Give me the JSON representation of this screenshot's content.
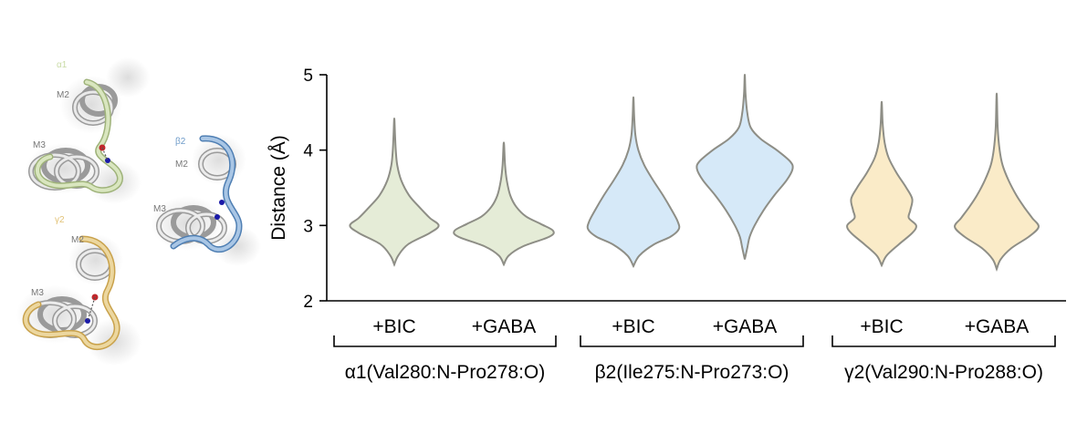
{
  "structure_panel": {
    "labels": {
      "alpha": "α1",
      "beta": "β2",
      "gamma": "γ2",
      "m2": "M2",
      "m3": "M3"
    },
    "colors": {
      "alpha": "#c9dba6",
      "beta": "#6e9bc9",
      "gamma": "#e2c277",
      "helix": "#bdbdbd",
      "bond_n": "#1a1aa8",
      "bond_o": "#c0282c"
    }
  },
  "chart_data": {
    "type": "violin",
    "ylabel": "Distance (Å)",
    "ylim": [
      2,
      5
    ],
    "yticks": [
      2,
      3,
      4,
      5
    ],
    "categories": [
      "+BIC",
      "+GABA",
      "+BIC",
      "+GABA",
      "+BIC",
      "+GABA"
    ],
    "groups": [
      {
        "label": "α1(Val280:N-Pro278:O)",
        "members": [
          0,
          1
        ]
      },
      {
        "label": "β2(Ile275:N-Pro273:O)",
        "members": [
          2,
          3
        ]
      },
      {
        "label": "γ2(Val290:N-Pro288:O)",
        "members": [
          4,
          5
        ]
      }
    ],
    "series": [
      {
        "fill": "#e5ecd7",
        "min": 2.48,
        "max": 4.42,
        "profile": [
          [
            2.48,
            0
          ],
          [
            2.6,
            0.08
          ],
          [
            2.75,
            0.28
          ],
          [
            2.9,
            0.72
          ],
          [
            3.0,
            0.9
          ],
          [
            3.1,
            0.72
          ],
          [
            3.25,
            0.5
          ],
          [
            3.4,
            0.3
          ],
          [
            3.6,
            0.14
          ],
          [
            3.8,
            0.06
          ],
          [
            4.0,
            0.03
          ],
          [
            4.2,
            0.015
          ],
          [
            4.42,
            0
          ]
        ]
      },
      {
        "fill": "#e5ecd7",
        "min": 2.48,
        "max": 4.1,
        "profile": [
          [
            2.48,
            0
          ],
          [
            2.6,
            0.1
          ],
          [
            2.72,
            0.38
          ],
          [
            2.85,
            0.92
          ],
          [
            2.93,
            1.0
          ],
          [
            3.02,
            0.75
          ],
          [
            3.12,
            0.45
          ],
          [
            3.25,
            0.25
          ],
          [
            3.4,
            0.13
          ],
          [
            3.6,
            0.06
          ],
          [
            3.8,
            0.025
          ],
          [
            4.1,
            0
          ]
        ]
      },
      {
        "fill": "#d6e9f8",
        "min": 2.46,
        "max": 4.7,
        "profile": [
          [
            2.46,
            0
          ],
          [
            2.6,
            0.12
          ],
          [
            2.75,
            0.42
          ],
          [
            2.85,
            0.75
          ],
          [
            2.95,
            0.92
          ],
          [
            3.05,
            0.9
          ],
          [
            3.2,
            0.78
          ],
          [
            3.4,
            0.6
          ],
          [
            3.6,
            0.4
          ],
          [
            3.8,
            0.22
          ],
          [
            4.0,
            0.1
          ],
          [
            4.2,
            0.04
          ],
          [
            4.45,
            0.015
          ],
          [
            4.7,
            0
          ]
        ]
      },
      {
        "fill": "#d6e9f8",
        "min": 2.55,
        "max": 5.0,
        "profile": [
          [
            2.55,
            0
          ],
          [
            2.7,
            0.05
          ],
          [
            2.85,
            0.1
          ],
          [
            3.0,
            0.2
          ],
          [
            3.2,
            0.38
          ],
          [
            3.4,
            0.6
          ],
          [
            3.6,
            0.85
          ],
          [
            3.75,
            0.97
          ],
          [
            3.85,
            0.92
          ],
          [
            4.0,
            0.65
          ],
          [
            4.15,
            0.32
          ],
          [
            4.3,
            0.12
          ],
          [
            4.5,
            0.05
          ],
          [
            4.75,
            0.015
          ],
          [
            5.0,
            0
          ]
        ]
      },
      {
        "fill": "#faebc8",
        "min": 2.47,
        "max": 4.64,
        "profile": [
          [
            2.47,
            0
          ],
          [
            2.6,
            0.1
          ],
          [
            2.75,
            0.35
          ],
          [
            2.9,
            0.62
          ],
          [
            3.0,
            0.7
          ],
          [
            3.1,
            0.55
          ],
          [
            3.2,
            0.58
          ],
          [
            3.35,
            0.62
          ],
          [
            3.5,
            0.5
          ],
          [
            3.7,
            0.3
          ],
          [
            3.9,
            0.14
          ],
          [
            4.1,
            0.06
          ],
          [
            4.35,
            0.02
          ],
          [
            4.64,
            0
          ]
        ]
      },
      {
        "fill": "#faebc8",
        "min": 2.42,
        "max": 4.75,
        "profile": [
          [
            2.42,
            0
          ],
          [
            2.55,
            0.08
          ],
          [
            2.7,
            0.3
          ],
          [
            2.85,
            0.65
          ],
          [
            2.98,
            0.85
          ],
          [
            3.1,
            0.72
          ],
          [
            3.25,
            0.55
          ],
          [
            3.4,
            0.4
          ],
          [
            3.6,
            0.24
          ],
          [
            3.8,
            0.12
          ],
          [
            4.0,
            0.06
          ],
          [
            4.3,
            0.02
          ],
          [
            4.75,
            0
          ]
        ]
      }
    ]
  }
}
